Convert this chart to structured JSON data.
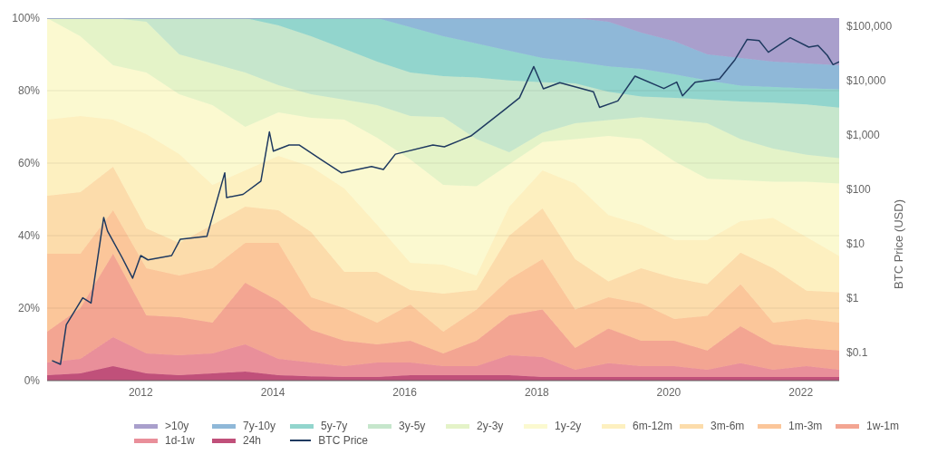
{
  "chart_data": {
    "type": "area",
    "stacked": true,
    "y2label": "BTC Price (USD)",
    "x": [
      "2010-08",
      "2011-02",
      "2011-08",
      "2012-02",
      "2012-08",
      "2013-02",
      "2013-08",
      "2014-02",
      "2014-08",
      "2015-02",
      "2015-08",
      "2016-02",
      "2016-08",
      "2017-02",
      "2017-08",
      "2018-02",
      "2018-08",
      "2019-02",
      "2019-08",
      "2020-02",
      "2020-08",
      "2021-02",
      "2021-08",
      "2022-02",
      "2022-08"
    ],
    "series": [
      {
        "name": "24h",
        "color": "#c0507a",
        "values": [
          1.5,
          2,
          4,
          2,
          1.5,
          2,
          2.5,
          1.5,
          1.2,
          1,
          1,
          1.5,
          1.5,
          1.5,
          1.5,
          1,
          1,
          1,
          1,
          1,
          1,
          1,
          1,
          1,
          1
        ]
      },
      {
        "name": "1d-1w",
        "color": "#e98f9a",
        "values": [
          3.5,
          4,
          8,
          5.5,
          5.5,
          5.5,
          7.5,
          4.5,
          3.8,
          3,
          4,
          3.5,
          2.5,
          2.5,
          5.5,
          5.5,
          2,
          3.8,
          3,
          3,
          2,
          3.8,
          2,
          3,
          2
        ]
      },
      {
        "name": "1w-1m",
        "color": "#f3a592",
        "values": [
          8.5,
          14,
          23,
          10.5,
          10.5,
          8.5,
          17,
          16,
          9,
          7,
          5,
          6,
          3.5,
          7,
          11,
          13.1,
          6,
          9.6,
          7,
          7,
          5.3,
          10.2,
          7,
          5,
          5.3
        ]
      },
      {
        "name": "1m-3m",
        "color": "#fbc69a",
        "values": [
          21.5,
          15,
          12,
          13,
          11.5,
          15,
          11,
          16,
          9,
          9,
          6,
          10,
          6,
          8.6,
          10,
          13.9,
          10.6,
          8.6,
          10.3,
          6,
          9.6,
          11.6,
          6,
          8,
          7.7
        ]
      },
      {
        "name": "3m-6m",
        "color": "#fcdcab",
        "values": [
          16,
          17,
          12,
          11,
          9,
          12,
          10,
          9,
          18,
          10,
          14,
          4,
          10.5,
          5.4,
          12,
          14,
          13.9,
          4.4,
          9.7,
          11.3,
          8.7,
          8.7,
          15,
          7.8,
          8.4
        ]
      },
      {
        "name": "6m-12m",
        "color": "#fdf0c0",
        "values": [
          21,
          21,
          13,
          26,
          24.5,
          11,
          10,
          15,
          18,
          23,
          13,
          7.5,
          8,
          4,
          8,
          10.5,
          20.9,
          18.3,
          12,
          10.5,
          12.2,
          8.7,
          13.9,
          14.8,
          10
        ]
      },
      {
        "name": "1y-2y",
        "color": "#fbf9d0",
        "values": [
          28,
          22,
          15,
          17,
          16.5,
          22,
          12,
          12,
          13.5,
          19,
          24,
          28.5,
          22,
          24.6,
          11.7,
          7.8,
          12.2,
          21.8,
          23.6,
          21.7,
          16.9,
          11.3,
          10,
          15.3,
          20
        ]
      },
      {
        "name": "2y-3y",
        "color": "#e4f3c8",
        "values": [
          0,
          5,
          13,
          14,
          11,
          11.5,
          15,
          7.5,
          6.5,
          5.5,
          9,
          12,
          18.7,
          13,
          3.3,
          2.6,
          4.4,
          4.4,
          6.1,
          11.4,
          15.3,
          11.3,
          9.1,
          7.4,
          7
        ]
      },
      {
        "name": "3y-5y",
        "color": "#c6e6cc",
        "values": [
          0,
          0,
          0,
          1,
          10,
          12.5,
          15,
          16.5,
          16,
          14,
          12,
          12,
          11.3,
          17,
          19.8,
          13.9,
          11,
          7.8,
          5.7,
          6.1,
          6.5,
          10.4,
          12.7,
          13.9,
          13.9
        ]
      },
      {
        "name": "5y-7y",
        "color": "#92d5cd",
        "values": [
          0,
          0,
          0,
          0,
          0,
          0,
          0,
          2,
          5,
          8.5,
          12,
          12.5,
          11,
          9.4,
          8.2,
          6.7,
          6,
          7,
          7.6,
          6.5,
          5.3,
          4.4,
          4.3,
          4.4,
          5.1
        ]
      },
      {
        "name": "7y-10y",
        "color": "#8fb8d8",
        "values": [
          0,
          0,
          0,
          0,
          0,
          0,
          0,
          0,
          0,
          0,
          0,
          2.5,
          5,
          7,
          9,
          11,
          12,
          12.3,
          10,
          9.1,
          7.2,
          7.6,
          7,
          6.9,
          6.6
        ]
      },
      {
        "name": ">10y",
        "color": "#a99fcc",
        "values": [
          0,
          0,
          0,
          0,
          0,
          0,
          0,
          0,
          0,
          0,
          0,
          0,
          0,
          0,
          0,
          0,
          0,
          1,
          4,
          6.4,
          10,
          11,
          12,
          12.5,
          13
        ]
      },
      {
        "name": "BTC Price",
        "type": "line",
        "axis": "y2",
        "color": "#1f3a60",
        "x": [
          "2010-08-28",
          "2010-10-14",
          "2010-11-15",
          "2011-02-14",
          "2011-04-01",
          "2011-06-10",
          "2011-07-01",
          "2011-09-20",
          "2011-11-17",
          "2012-01-01",
          "2012-02-10",
          "2012-06-20",
          "2012-08-07",
          "2013-01-01",
          "2013-04-10",
          "2013-04-20",
          "2013-07-20",
          "2013-10-27",
          "2013-12-13",
          "2014-01-04",
          "2014-04-01",
          "2014-05-26",
          "2014-10-01",
          "2015-01-15",
          "2015-07-01",
          "2015-09-05",
          "2015-11-10",
          "2016-06-05",
          "2016-08-07",
          "2017-01-01",
          "2017-07-01",
          "2017-09-27",
          "2017-12-15",
          "2018-02-06",
          "2018-05-08",
          "2018-11-10",
          "2018-12-14",
          "2019-03-25",
          "2019-06-28",
          "2019-12-05",
          "2020-02-14",
          "2020-03-17",
          "2020-05-26",
          "2020-10-08",
          "2021-01-01",
          "2021-03-10",
          "2021-05-15",
          "2021-07-05",
          "2021-11-03",
          "2022-02-14",
          "2022-04-06",
          "2022-05-27",
          "2022-06-28",
          "2022-08-01"
        ],
        "values": [
          0.07,
          0.06,
          0.32,
          1,
          0.8,
          30,
          17,
          5.5,
          2.3,
          6,
          5,
          6,
          12,
          13.5,
          200,
          70,
          80,
          140,
          1130,
          500,
          650,
          650,
          340,
          200,
          260,
          230,
          440,
          650,
          600,
          950,
          2800,
          4800,
          18000,
          7000,
          9100,
          6200,
          3200,
          4200,
          12000,
          7100,
          9300,
          5200,
          9300,
          10700,
          24000,
          57000,
          54000,
          33000,
          61000,
          41000,
          44000,
          29000,
          19500,
          22000
        ]
      }
    ],
    "xlim": [
      "2010-08",
      "2022-08"
    ],
    "xticks": [
      "2012",
      "2014",
      "2016",
      "2018",
      "2020",
      "2022"
    ],
    "ylim": [
      0,
      100
    ],
    "yticks": [
      {
        "value": 0,
        "label": "0%"
      },
      {
        "value": 20,
        "label": "20%"
      },
      {
        "value": 40,
        "label": "40%"
      },
      {
        "value": 60,
        "label": "60%"
      },
      {
        "value": 80,
        "label": "80%"
      },
      {
        "value": 100,
        "label": "100%"
      }
    ],
    "log": "y2",
    "y2lim": [
      0.03,
      140000
    ],
    "y2ticks": [
      {
        "value": 0.1,
        "label": "$0.1"
      },
      {
        "value": 1,
        "label": "$1"
      },
      {
        "value": 10,
        "label": "$10"
      },
      {
        "value": 100,
        "label": "$100"
      },
      {
        "value": 1000,
        "label": "$1,000"
      },
      {
        "value": 10000,
        "label": "$10,000"
      },
      {
        "value": 100000,
        "label": "$100,000"
      }
    ],
    "grid": "y",
    "legend": "bottom",
    "line_style": "solid",
    "marker": "none"
  }
}
